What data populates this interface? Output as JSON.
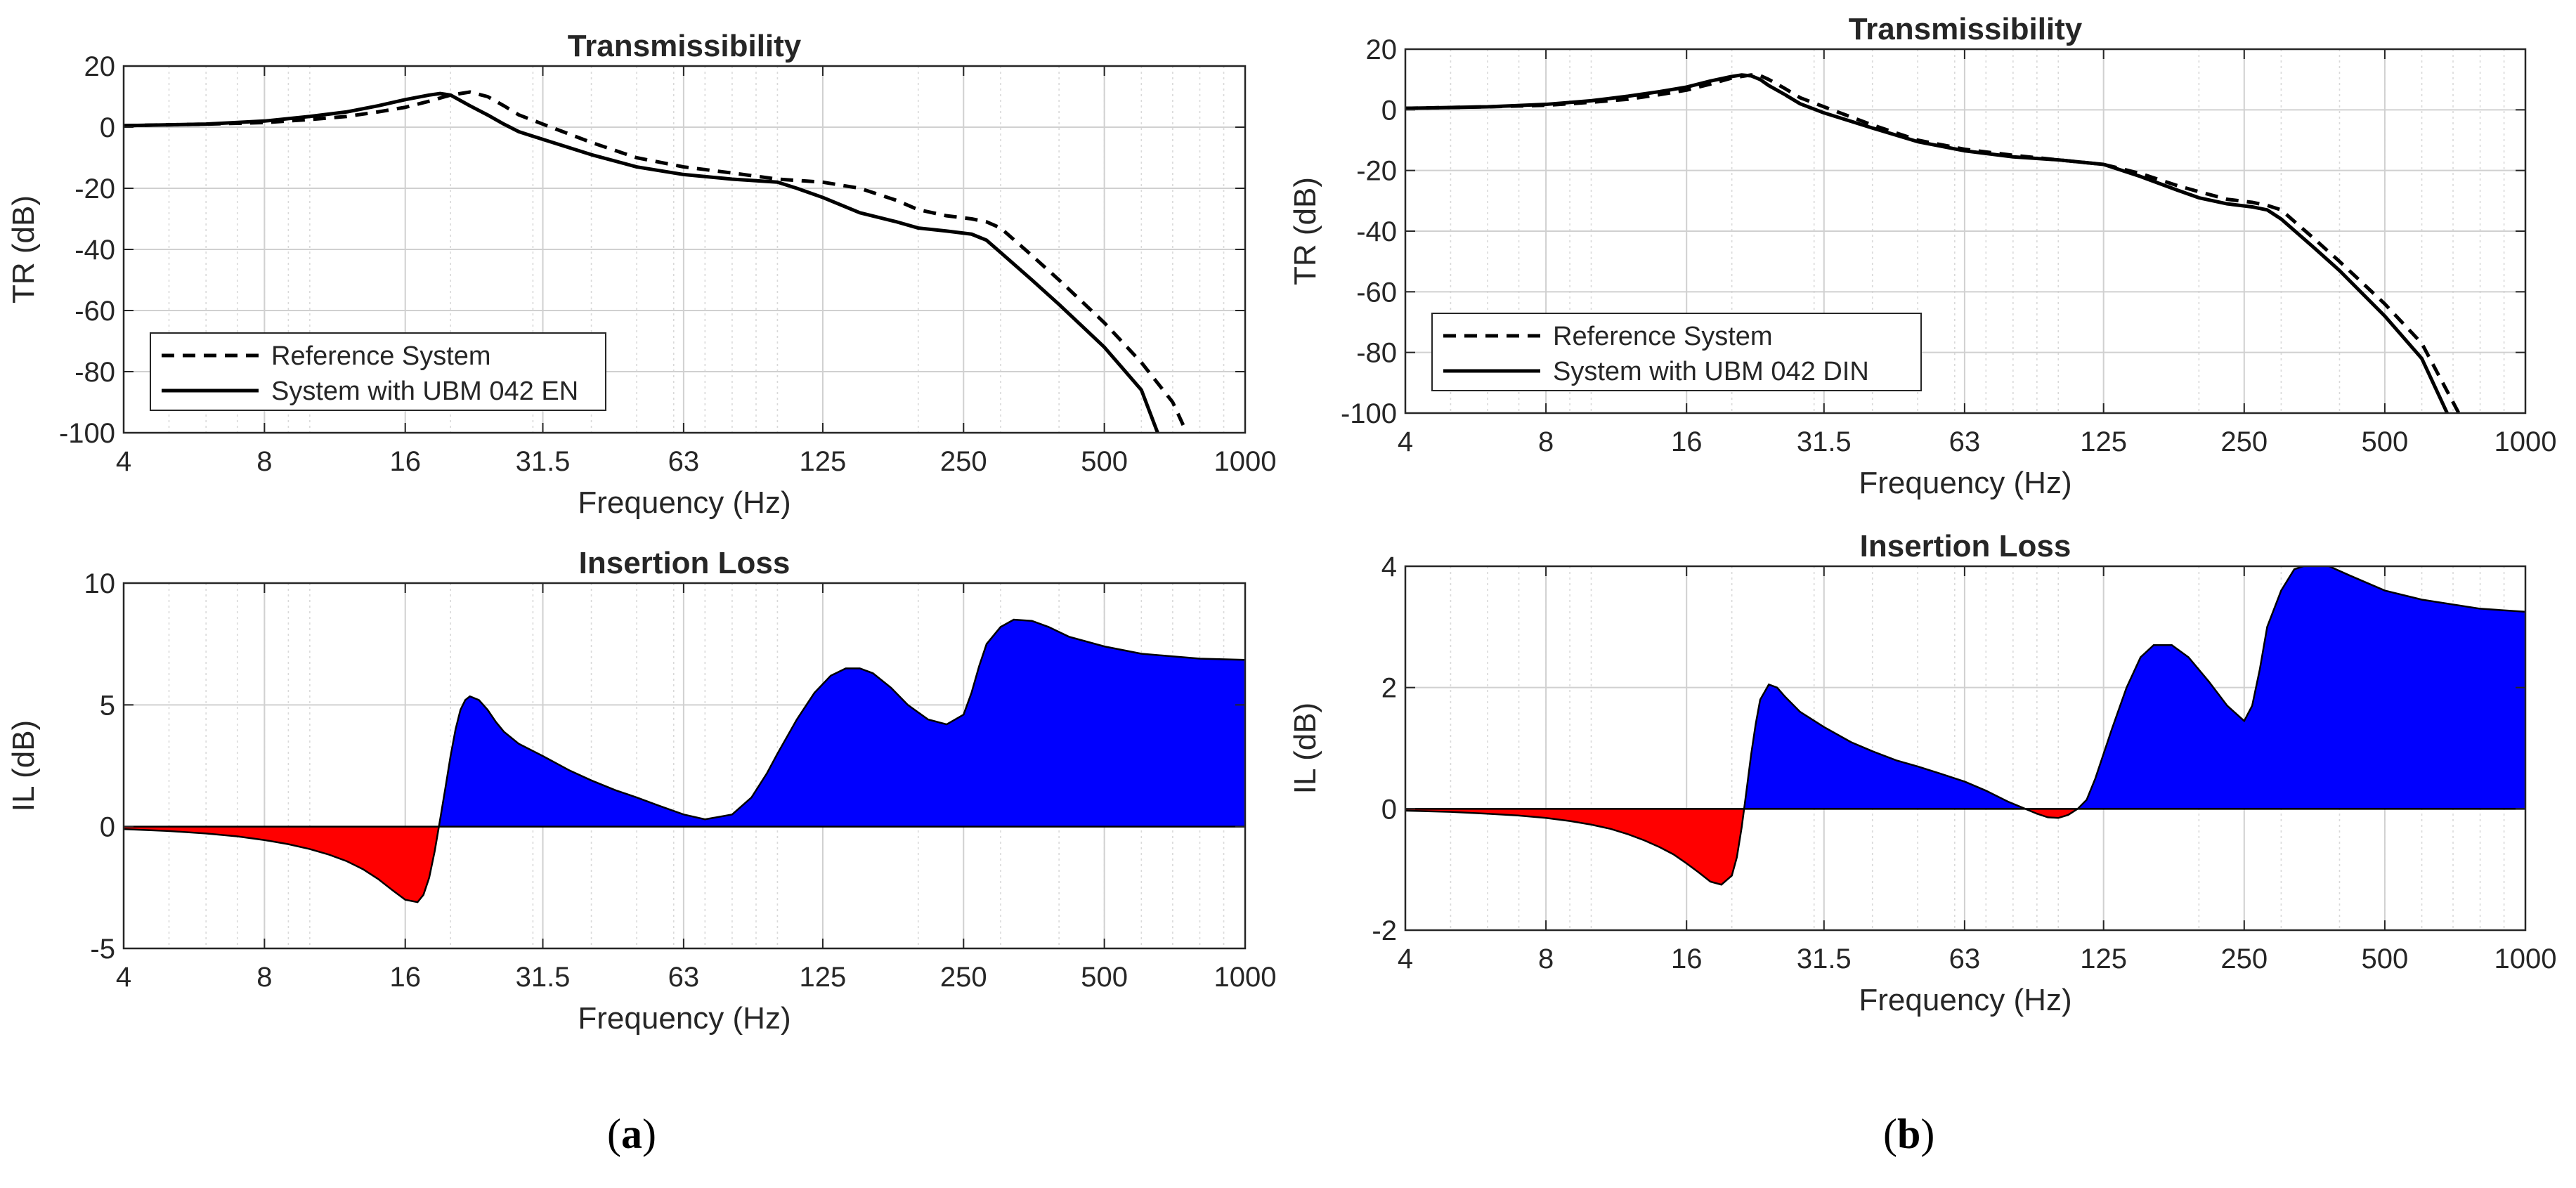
{
  "chart_data": [
    {
      "id": "a_tr",
      "type": "line",
      "title": "Transmissibility",
      "xlabel": "Frequency (Hz)",
      "ylabel": "TR (dB)",
      "xscale": "log",
      "xlim": [
        4,
        1000
      ],
      "ylim": [
        -100,
        20
      ],
      "xticks": [
        4,
        8,
        16,
        31.5,
        63,
        125,
        250,
        500,
        1000
      ],
      "xticklabels": [
        "4",
        "8",
        "16",
        "31.5",
        "63",
        "125",
        "250",
        "500",
        "1000"
      ],
      "yticks": [
        -100,
        -80,
        -60,
        -40,
        -20,
        0,
        20
      ],
      "yticklabels": [
        "-100",
        "-80",
        "-60",
        "-40",
        "-20",
        "0",
        "20"
      ],
      "grid": true,
      "legend_position": "bottom-left",
      "series": [
        {
          "name": "Reference System",
          "style": "dashed",
          "color": "#000000",
          "x": [
            4,
            6,
            8,
            10,
            12,
            14,
            16,
            18,
            20,
            22,
            24,
            26,
            28,
            31.5,
            40,
            50,
            63,
            80,
            100,
            125,
            150,
            180,
            200,
            230,
            260,
            280,
            300,
            350,
            400,
            500,
            600,
            700,
            750
          ],
          "y": [
            0.5,
            1,
            1.5,
            2.5,
            3.5,
            5,
            6.5,
            8.5,
            10.5,
            11.5,
            10,
            7,
            4,
            1,
            -5,
            -10,
            -13,
            -15,
            -17,
            -18,
            -20,
            -24,
            -27,
            -29,
            -30,
            -31,
            -33,
            -42,
            -50,
            -64,
            -77,
            -90,
            -100
          ]
        },
        {
          "name": "System with UBM 042 EN",
          "style": "solid",
          "color": "#000000",
          "x": [
            4,
            6,
            8,
            10,
            12,
            14,
            16,
            18,
            19,
            20,
            22,
            24,
            26,
            28,
            31.5,
            40,
            50,
            63,
            80,
            100,
            110,
            125,
            150,
            180,
            200,
            230,
            260,
            280,
            300,
            350,
            400,
            500,
            600,
            650
          ],
          "y": [
            0.5,
            1,
            2,
            3.5,
            5,
            7,
            9,
            10.5,
            11,
            10.5,
            7,
            4,
            1,
            -1.5,
            -4,
            -9,
            -13,
            -15.5,
            -17,
            -18,
            -20,
            -23,
            -28,
            -31,
            -33,
            -34,
            -35,
            -37,
            -41,
            -50,
            -58,
            -72,
            -86,
            -100
          ]
        }
      ]
    },
    {
      "id": "a_il",
      "type": "area",
      "title": "Insertion Loss",
      "xlabel": "Frequency (Hz)",
      "ylabel": "IL (dB)",
      "xscale": "log",
      "xlim": [
        4,
        1000
      ],
      "ylim": [
        -5,
        10
      ],
      "xticks": [
        4,
        8,
        16,
        31.5,
        63,
        125,
        250,
        500,
        1000
      ],
      "xticklabels": [
        "4",
        "8",
        "16",
        "31.5",
        "63",
        "125",
        "250",
        "500",
        "1000"
      ],
      "yticks": [
        -5,
        0,
        5,
        10
      ],
      "yticklabels": [
        "-5",
        "0",
        "5",
        "10"
      ],
      "grid": true,
      "positive_color": "#0000ff",
      "negative_color": "#ff0000",
      "series": [
        {
          "name": "Insertion Loss",
          "x": [
            4,
            5,
            6,
            7,
            8,
            9,
            10,
            11,
            12,
            13,
            14,
            15,
            16,
            17,
            17.5,
            18,
            18.5,
            19,
            19.5,
            20,
            20.5,
            21,
            21.5,
            22,
            23,
            24,
            25,
            26,
            28,
            31.5,
            36,
            40,
            45,
            50,
            56,
            63,
            70,
            80,
            88,
            95,
            100,
            110,
            120,
            130,
            140,
            150,
            160,
            175,
            190,
            210,
            230,
            250,
            260,
            270,
            280,
            300,
            320,
            350,
            380,
            420,
            500,
            600,
            800,
            1000
          ],
          "y": [
            -0.1,
            -0.18,
            -0.28,
            -0.4,
            -0.55,
            -0.72,
            -0.92,
            -1.15,
            -1.42,
            -1.75,
            -2.15,
            -2.6,
            -3.0,
            -3.1,
            -2.8,
            -2.1,
            -1.0,
            0.3,
            1.6,
            2.9,
            4.0,
            4.8,
            5.2,
            5.35,
            5.2,
            4.8,
            4.3,
            3.9,
            3.4,
            2.9,
            2.3,
            1.9,
            1.5,
            1.2,
            0.85,
            0.5,
            0.3,
            0.5,
            1.2,
            2.2,
            3.0,
            4.4,
            5.5,
            6.2,
            6.5,
            6.5,
            6.3,
            5.7,
            5.0,
            4.4,
            4.2,
            4.6,
            5.5,
            6.6,
            7.5,
            8.2,
            8.5,
            8.45,
            8.2,
            7.8,
            7.4,
            7.1,
            6.9,
            6.85
          ]
        }
      ]
    },
    {
      "id": "b_tr",
      "type": "line",
      "title": "Transmissibility",
      "xlabel": "Frequency (Hz)",
      "ylabel": "TR (dB)",
      "xscale": "log",
      "xlim": [
        4,
        1000
      ],
      "ylim": [
        -100,
        20
      ],
      "xticks": [
        4,
        8,
        16,
        31.5,
        63,
        125,
        250,
        500,
        1000
      ],
      "xticklabels": [
        "4",
        "8",
        "16",
        "31.5",
        "63",
        "125",
        "250",
        "500",
        "1000"
      ],
      "yticks": [
        -100,
        -80,
        -60,
        -40,
        -20,
        0,
        20
      ],
      "yticklabels": [
        "-100",
        "-80",
        "-60",
        "-40",
        "-20",
        "0",
        "20"
      ],
      "grid": true,
      "legend_position": "bottom-left",
      "series": [
        {
          "name": "Reference System",
          "style": "dashed",
          "color": "#000000",
          "x": [
            4,
            6,
            8,
            10,
            12,
            14,
            16,
            18,
            20,
            22,
            23,
            24,
            26,
            28,
            31.5,
            40,
            50,
            63,
            80,
            100,
            125,
            150,
            180,
            200,
            230,
            260,
            280,
            300,
            350,
            400,
            500,
            600,
            720
          ],
          "y": [
            0.5,
            1,
            1.5,
            2.5,
            3.5,
            5,
            6.5,
            8.5,
            10.5,
            11.5,
            11.3,
            10,
            7,
            4,
            1,
            -5,
            -10,
            -13,
            -15,
            -16.5,
            -18,
            -21,
            -25,
            -27,
            -29.5,
            -30.5,
            -31.5,
            -33,
            -42,
            -50,
            -64,
            -77,
            -100
          ]
        },
        {
          "name": "System with UBM 042 DIN",
          "style": "solid",
          "color": "#000000",
          "x": [
            4,
            6,
            8,
            10,
            12,
            14,
            16,
            18,
            20,
            21,
            22,
            23,
            24,
            26,
            28,
            31.5,
            40,
            50,
            63,
            80,
            100,
            125,
            150,
            180,
            200,
            230,
            260,
            280,
            300,
            350,
            400,
            500,
            600,
            680
          ],
          "y": [
            0.5,
            1,
            1.8,
            3,
            4.5,
            6,
            7.5,
            9.5,
            11,
            11.5,
            11.2,
            10,
            8,
            5,
            2,
            -1,
            -6,
            -10.5,
            -13.5,
            -15.5,
            -16.5,
            -18,
            -22,
            -26.5,
            -29,
            -31,
            -32,
            -33,
            -36,
            -45,
            -53,
            -68,
            -82,
            -100
          ]
        }
      ]
    },
    {
      "id": "b_il",
      "type": "area",
      "title": "Insertion Loss",
      "xlabel": "Frequency (Hz)",
      "ylabel": "IL (dB)",
      "xscale": "log",
      "xlim": [
        4,
        1000
      ],
      "ylim": [
        -2,
        4
      ],
      "xticks": [
        4,
        8,
        16,
        31.5,
        63,
        125,
        250,
        500,
        1000
      ],
      "xticklabels": [
        "4",
        "8",
        "16",
        "31.5",
        "63",
        "125",
        "250",
        "500",
        "1000"
      ],
      "yticks": [
        -2,
        0,
        2,
        4
      ],
      "yticklabels": [
        "-2",
        "0",
        "2",
        "4"
      ],
      "grid": true,
      "positive_color": "#0000ff",
      "negative_color": "#ff0000",
      "series": [
        {
          "name": "Insertion Loss",
          "x": [
            4,
            5,
            6,
            7,
            8,
            9,
            10,
            11,
            12,
            13,
            14,
            15,
            16,
            17,
            18,
            19,
            20,
            20.5,
            21,
            21.5,
            22,
            22.5,
            23,
            24,
            25,
            26,
            28,
            31.5,
            36,
            40,
            45,
            50,
            56,
            63,
            70,
            78,
            85,
            90,
            95,
            100,
            105,
            110,
            115,
            120,
            130,
            140,
            150,
            160,
            175,
            190,
            210,
            230,
            250,
            260,
            270,
            280,
            300,
            320,
            350,
            380,
            420,
            500,
            600,
            800,
            1000
          ],
          "y": [
            -0.03,
            -0.05,
            -0.08,
            -0.11,
            -0.15,
            -0.2,
            -0.26,
            -0.33,
            -0.42,
            -0.52,
            -0.63,
            -0.75,
            -0.9,
            -1.05,
            -1.2,
            -1.25,
            -1.1,
            -0.8,
            -0.3,
            0.3,
            0.9,
            1.4,
            1.8,
            2.05,
            2.0,
            1.85,
            1.6,
            1.35,
            1.1,
            0.95,
            0.8,
            0.7,
            0.58,
            0.45,
            0.3,
            0.12,
            0.0,
            -0.08,
            -0.14,
            -0.15,
            -0.1,
            0.0,
            0.15,
            0.5,
            1.3,
            2.0,
            2.5,
            2.7,
            2.7,
            2.5,
            2.1,
            1.7,
            1.45,
            1.7,
            2.3,
            3.0,
            3.6,
            3.95,
            4.05,
            4.0,
            3.85,
            3.6,
            3.45,
            3.3,
            3.25
          ]
        }
      ]
    }
  ],
  "panel_labels": {
    "a": {
      "open": "(",
      "letter": "a",
      "close": ")"
    },
    "b": {
      "open": "(",
      "letter": "b",
      "close": ")"
    }
  }
}
